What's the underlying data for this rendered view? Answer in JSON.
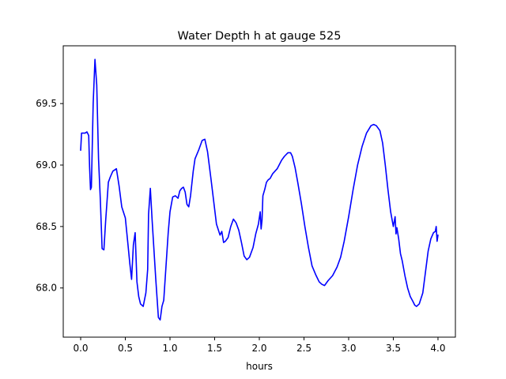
{
  "chart_data": {
    "type": "line",
    "title": "Water Depth h at gauge 525",
    "xlabel": "hours",
    "ylabel": "",
    "xlim": [
      -0.195,
      4.195
    ],
    "ylim": [
      67.6,
      69.97
    ],
    "xticks": [
      0.0,
      0.5,
      1.0,
      1.5,
      2.0,
      2.5,
      3.0,
      3.5,
      4.0
    ],
    "xtick_labels": [
      "0.0",
      "0.5",
      "1.0",
      "1.5",
      "2.0",
      "2.5",
      "3.0",
      "3.5",
      "4.0"
    ],
    "yticks": [
      68.0,
      68.5,
      69.0,
      69.5
    ],
    "ytick_labels": [
      "68.0",
      "68.5",
      "69.0",
      "69.5"
    ],
    "grid": false,
    "legend": "none",
    "series": [
      {
        "color": "#0000ff",
        "x": [
          0.0,
          0.01,
          0.05,
          0.07,
          0.09,
          0.1,
          0.11,
          0.12,
          0.14,
          0.16,
          0.18,
          0.2,
          0.22,
          0.24,
          0.26,
          0.28,
          0.31,
          0.33,
          0.36,
          0.4,
          0.43,
          0.46,
          0.5,
          0.53,
          0.55,
          0.57,
          0.59,
          0.61,
          0.63,
          0.65,
          0.67,
          0.7,
          0.73,
          0.75,
          0.76,
          0.78,
          0.8,
          0.84,
          0.87,
          0.89,
          0.91,
          0.93,
          0.95,
          0.98,
          1.0,
          1.03,
          1.06,
          1.09,
          1.11,
          1.13,
          1.15,
          1.17,
          1.19,
          1.21,
          1.23,
          1.26,
          1.28,
          1.32,
          1.36,
          1.39,
          1.42,
          1.46,
          1.49,
          1.52,
          1.56,
          1.58,
          1.6,
          1.62,
          1.65,
          1.68,
          1.71,
          1.74,
          1.77,
          1.8,
          1.83,
          1.86,
          1.89,
          1.93,
          1.96,
          1.99,
          2.01,
          2.02,
          2.03,
          2.04,
          2.06,
          2.08,
          2.1,
          2.12,
          2.15,
          2.2,
          2.25,
          2.28,
          2.32,
          2.35,
          2.37,
          2.4,
          2.43,
          2.47,
          2.51,
          2.55,
          2.59,
          2.63,
          2.67,
          2.7,
          2.73,
          2.77,
          2.82,
          2.87,
          2.91,
          2.95,
          3.0,
          3.05,
          3.1,
          3.15,
          3.2,
          3.25,
          3.28,
          3.31,
          3.35,
          3.38,
          3.41,
          3.44,
          3.47,
          3.5,
          3.52,
          3.53,
          3.54,
          3.56,
          3.58,
          3.6,
          3.63,
          3.66,
          3.69,
          3.72,
          3.74,
          3.76,
          3.79,
          3.83,
          3.86,
          3.89,
          3.92,
          3.95,
          3.97,
          3.98,
          3.99,
          4.0
        ],
        "y": [
          69.12,
          69.26,
          69.26,
          69.27,
          69.24,
          68.98,
          68.8,
          68.82,
          69.5,
          69.86,
          69.65,
          69.05,
          68.72,
          68.32,
          68.31,
          68.55,
          68.86,
          68.9,
          68.95,
          68.97,
          68.83,
          68.66,
          68.57,
          68.35,
          68.2,
          68.07,
          68.35,
          68.45,
          68.05,
          67.93,
          67.87,
          67.85,
          67.96,
          68.15,
          68.6,
          68.81,
          68.55,
          68.08,
          67.76,
          67.74,
          67.85,
          67.9,
          68.12,
          68.45,
          68.62,
          68.74,
          68.75,
          68.73,
          68.79,
          68.81,
          68.82,
          68.78,
          68.68,
          68.66,
          68.75,
          68.95,
          69.05,
          69.12,
          69.2,
          69.21,
          69.11,
          68.88,
          68.7,
          68.52,
          68.43,
          68.46,
          68.37,
          68.38,
          68.41,
          68.5,
          68.56,
          68.53,
          68.47,
          68.37,
          68.26,
          68.23,
          68.25,
          68.33,
          68.44,
          68.52,
          68.62,
          68.48,
          68.55,
          68.75,
          68.8,
          68.86,
          68.88,
          68.89,
          68.93,
          68.97,
          69.04,
          69.07,
          69.1,
          69.1,
          69.07,
          68.98,
          68.86,
          68.69,
          68.5,
          68.33,
          68.18,
          68.11,
          68.05,
          68.03,
          68.02,
          68.06,
          68.1,
          68.17,
          68.25,
          68.38,
          68.58,
          68.8,
          69.0,
          69.15,
          69.26,
          69.32,
          69.33,
          69.32,
          69.28,
          69.18,
          69.0,
          68.8,
          68.62,
          68.5,
          68.58,
          68.44,
          68.49,
          68.4,
          68.28,
          68.22,
          68.1,
          68.0,
          67.93,
          67.89,
          67.86,
          67.85,
          67.87,
          67.96,
          68.13,
          68.3,
          68.4,
          68.45,
          68.46,
          68.5,
          68.38,
          68.43
        ]
      }
    ]
  }
}
